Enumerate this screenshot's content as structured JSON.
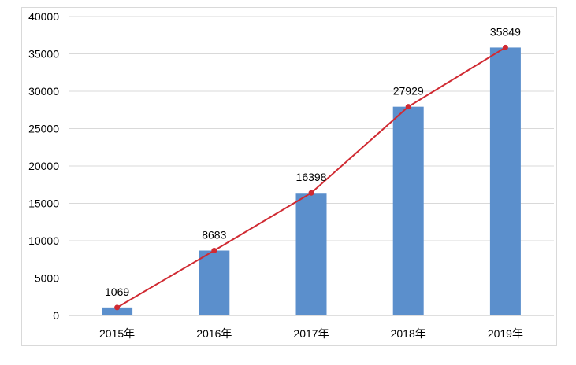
{
  "chart_data": {
    "type": "bar+line",
    "categories": [
      "2015年",
      "2016年",
      "2017年",
      "2018年",
      "2019年"
    ],
    "values": [
      1069,
      8683,
      16398,
      27929,
      35849
    ],
    "ylim": [
      0,
      40000
    ],
    "yticks": [
      0,
      5000,
      10000,
      15000,
      20000,
      25000,
      30000,
      35000,
      40000
    ],
    "grid": true,
    "legend": "none",
    "colors": {
      "bar": "#5b8fcc",
      "line": "#d02a32",
      "grid": "#d9d9d9"
    }
  }
}
